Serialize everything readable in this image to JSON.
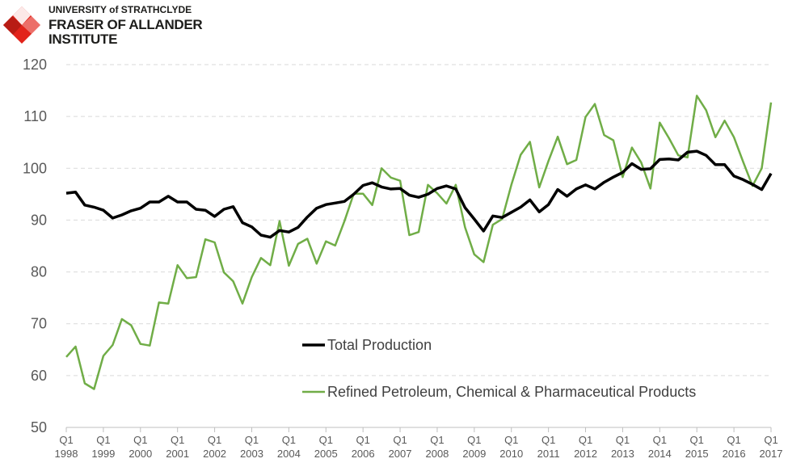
{
  "logo": {
    "line1": "UNIVERSITY of STRATHCLYDE",
    "line2": "FRASER OF ALLANDER",
    "line3": "INSTITUTE",
    "colors": {
      "red": "#e2231a",
      "dark": "#1d1d1b"
    }
  },
  "chart_data": {
    "type": "line",
    "ylim": [
      50,
      120
    ],
    "yticks": [
      50,
      60,
      70,
      80,
      90,
      100,
      110,
      120
    ],
    "grid": true,
    "legend_placement": "center-right",
    "x_tick_labels": [
      [
        "Q1",
        "1998"
      ],
      [
        "Q1",
        "1999"
      ],
      [
        "Q1",
        "2000"
      ],
      [
        "Q1",
        "2001"
      ],
      [
        "Q1",
        "2002"
      ],
      [
        "Q1",
        "2003"
      ],
      [
        "Q1",
        "2004"
      ],
      [
        "Q1",
        "2005"
      ],
      [
        "Q1",
        "2006"
      ],
      [
        "Q1",
        "2007"
      ],
      [
        "Q1",
        "2008"
      ],
      [
        "Q1",
        "2009"
      ],
      [
        "Q1",
        "2010"
      ],
      [
        "Q1",
        "2011"
      ],
      [
        "Q1",
        "2012"
      ],
      [
        "Q1",
        "2013"
      ],
      [
        "Q1",
        "2014"
      ],
      [
        "Q1",
        "2015"
      ],
      [
        "Q1",
        "2016"
      ],
      [
        "Q1",
        "2017"
      ]
    ],
    "series": [
      {
        "name": "Total Production",
        "color": "#000000",
        "values": [
          95.2,
          95.4,
          92.9,
          92.5,
          91.9,
          90.4,
          91.0,
          91.8,
          92.3,
          93.5,
          93.5,
          94.6,
          93.5,
          93.5,
          92.1,
          91.9,
          90.7,
          92.1,
          92.6,
          89.5,
          88.7,
          87.1,
          86.7,
          88.0,
          87.7,
          88.6,
          90.6,
          92.3,
          93.0,
          93.3,
          93.6,
          95.0,
          96.7,
          97.2,
          96.4,
          96.0,
          96.1,
          94.8,
          94.4,
          95.0,
          96.1,
          96.6,
          96.0,
          92.4,
          90.2,
          87.9,
          90.8,
          90.5,
          91.5,
          92.5,
          93.9,
          91.6,
          93.0,
          95.9,
          94.6,
          96.0,
          96.8,
          96.0,
          97.3,
          98.3,
          99.2,
          100.9,
          99.8,
          99.9,
          101.7,
          101.8,
          101.6,
          103.1,
          103.3,
          102.5,
          100.7,
          100.7,
          98.5,
          97.8,
          96.9,
          95.9,
          99.0
        ]
      },
      {
        "name": "Refined Petroleum, Chemical & Pharmaceutical Products",
        "color": "#70ad47",
        "values": [
          63.6,
          65.6,
          58.5,
          57.4,
          63.8,
          65.9,
          70.9,
          69.7,
          66.1,
          65.8,
          74.1,
          73.9,
          81.3,
          78.8,
          79.0,
          86.3,
          85.7,
          79.9,
          78.2,
          73.9,
          79.0,
          82.7,
          81.3,
          89.8,
          81.2,
          85.4,
          86.4,
          81.6,
          85.9,
          85.1,
          89.8,
          95.1,
          95.1,
          92.9,
          100.0,
          98.2,
          97.6,
          87.1,
          87.7,
          96.8,
          95.2,
          93.2,
          96.8,
          88.6,
          83.4,
          81.9,
          89.1,
          90.2,
          96.8,
          102.6,
          105.1,
          96.3,
          101.4,
          106.1,
          100.8,
          101.6,
          109.9,
          112.4,
          106.4,
          105.4,
          98.3,
          104.0,
          101.1,
          96.1,
          108.8,
          105.8,
          102.5,
          102.1,
          114.0,
          111.2,
          106.0,
          109.2,
          106.0,
          101.2,
          96.6,
          100.0,
          112.7
        ]
      }
    ]
  }
}
